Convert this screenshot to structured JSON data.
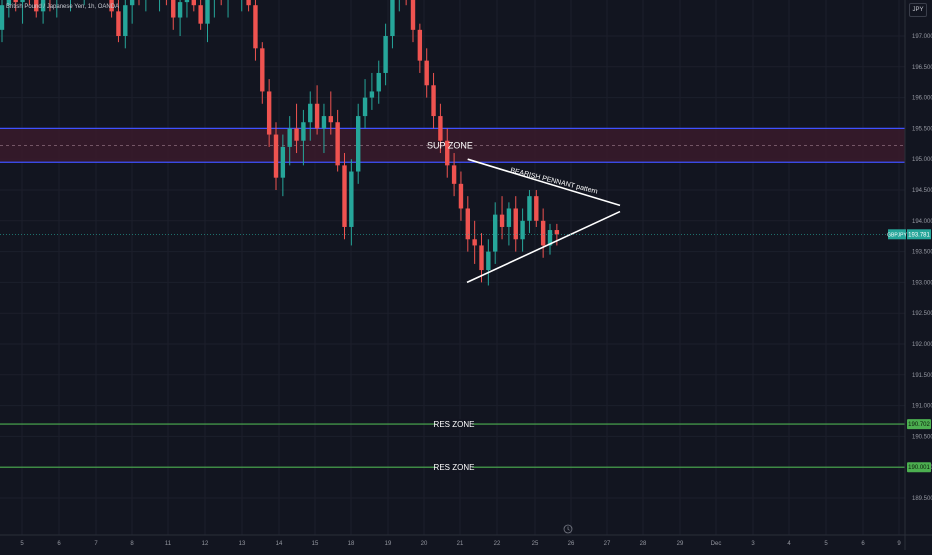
{
  "header": {
    "title": "British Pound / Japanese Yen, 1h, OANDA",
    "currency": "JPY"
  },
  "colors": {
    "background": "#121520",
    "grid": "#1c1f2b",
    "up": "#26a69a",
    "down": "#ef5350",
    "zone_line": "#3f51ff",
    "zone_fill": "#3a1a2c",
    "res_line": "#4caf50",
    "pennant": "#ffffff",
    "price_badge": "#26a69a"
  },
  "chart_data": {
    "type": "candlestick",
    "symbol": "GBPJPY",
    "timeframe": "1h",
    "y_axis": {
      "range": [
        189.0,
        198.1
      ],
      "ticks": [
        "197.000",
        "196.500",
        "196.000",
        "195.500",
        "195.000",
        "194.500",
        "194.000",
        "193.500",
        "193.000",
        "192.500",
        "192.000",
        "191.500",
        "191.000",
        "190.500",
        "190.000",
        "189.500"
      ]
    },
    "x_axis": {
      "ticks": [
        "5",
        "6",
        "7",
        "8",
        "11",
        "12",
        "13",
        "14",
        "15",
        "18",
        "19",
        "20",
        "21",
        "22",
        "25",
        "26",
        "27",
        "28",
        "29",
        "Dec",
        "3",
        "4",
        "5",
        "6",
        "9"
      ]
    },
    "candles": [
      [
        197.1,
        197.6,
        196.9,
        197.5
      ],
      [
        197.5,
        197.9,
        197.3,
        197.7
      ],
      [
        197.7,
        198.0,
        197.4,
        197.55
      ],
      [
        197.55,
        197.9,
        197.2,
        197.8
      ],
      [
        197.8,
        198.0,
        197.5,
        197.65
      ],
      [
        197.65,
        197.9,
        197.3,
        197.4
      ],
      [
        197.4,
        197.8,
        197.2,
        197.75
      ],
      [
        197.75,
        198.0,
        197.4,
        197.6
      ],
      [
        197.6,
        198.0,
        197.3,
        197.9
      ],
      [
        197.9,
        198.05,
        197.6,
        197.7
      ],
      [
        197.7,
        198.0,
        197.4,
        197.85
      ],
      [
        197.85,
        198.05,
        197.6,
        197.75
      ],
      [
        197.75,
        198.0,
        197.5,
        197.95
      ],
      [
        197.95,
        198.1,
        197.7,
        197.8
      ],
      [
        197.8,
        198.1,
        197.6,
        198.0
      ],
      [
        198.0,
        198.1,
        197.7,
        197.85
      ],
      [
        197.85,
        198.1,
        197.3,
        197.4
      ],
      [
        197.4,
        197.8,
        196.9,
        197.0
      ],
      [
        197.0,
        197.6,
        196.8,
        197.5
      ],
      [
        197.5,
        198.0,
        197.2,
        197.8
      ],
      [
        197.8,
        198.1,
        197.5,
        197.7
      ],
      [
        197.7,
        198.1,
        197.4,
        197.95
      ],
      [
        197.95,
        198.1,
        197.6,
        197.75
      ],
      [
        197.75,
        198.05,
        197.4,
        197.9
      ],
      [
        197.9,
        198.1,
        197.5,
        197.6
      ],
      [
        197.6,
        197.9,
        197.1,
        197.3
      ],
      [
        197.3,
        197.7,
        197.0,
        197.55
      ],
      [
        197.55,
        198.0,
        197.3,
        197.8
      ],
      [
        197.8,
        198.05,
        197.4,
        197.5
      ],
      [
        197.5,
        197.9,
        197.1,
        197.2
      ],
      [
        197.2,
        197.7,
        196.9,
        197.6
      ],
      [
        197.6,
        198.0,
        197.3,
        197.85
      ],
      [
        197.85,
        198.1,
        197.5,
        197.7
      ],
      [
        197.7,
        198.05,
        197.3,
        197.9
      ],
      [
        197.9,
        198.1,
        197.6,
        197.75
      ],
      [
        197.75,
        198.1,
        197.4,
        198.0
      ],
      [
        198.0,
        198.1,
        197.4,
        197.5
      ],
      [
        197.5,
        197.6,
        196.6,
        196.8
      ],
      [
        196.8,
        196.9,
        195.9,
        196.1
      ],
      [
        196.1,
        196.3,
        195.2,
        195.4
      ],
      [
        195.4,
        195.6,
        194.5,
        194.7
      ],
      [
        194.7,
        195.4,
        194.4,
        195.2
      ],
      [
        195.2,
        195.7,
        194.9,
        195.5
      ],
      [
        195.5,
        195.9,
        195.1,
        195.3
      ],
      [
        195.3,
        195.8,
        194.9,
        195.6
      ],
      [
        195.6,
        196.1,
        195.3,
        195.9
      ],
      [
        195.9,
        196.2,
        195.4,
        195.5
      ],
      [
        195.5,
        195.9,
        195.1,
        195.7
      ],
      [
        195.7,
        196.1,
        195.4,
        195.6
      ],
      [
        195.6,
        195.8,
        194.8,
        194.9
      ],
      [
        194.9,
        195.1,
        193.7,
        193.9
      ],
      [
        193.9,
        195.0,
        193.6,
        194.8
      ],
      [
        194.8,
        195.9,
        194.6,
        195.7
      ],
      [
        195.7,
        196.3,
        195.5,
        196.0
      ],
      [
        196.0,
        196.4,
        195.8,
        196.1
      ],
      [
        196.1,
        196.6,
        195.9,
        196.4
      ],
      [
        196.4,
        197.2,
        196.2,
        197.0
      ],
      [
        197.0,
        197.8,
        196.8,
        197.6
      ],
      [
        197.6,
        198.2,
        197.4,
        198.0
      ],
      [
        198.0,
        198.1,
        197.5,
        197.7
      ],
      [
        197.7,
        197.8,
        196.9,
        197.1
      ],
      [
        197.1,
        197.2,
        196.4,
        196.6
      ],
      [
        196.6,
        196.8,
        196.0,
        196.2
      ],
      [
        196.2,
        196.4,
        195.5,
        195.7
      ],
      [
        195.7,
        195.9,
        195.1,
        195.3
      ],
      [
        195.3,
        195.5,
        194.7,
        194.9
      ],
      [
        194.9,
        195.1,
        194.4,
        194.6
      ],
      [
        194.6,
        194.8,
        194.0,
        194.2
      ],
      [
        194.2,
        194.4,
        193.5,
        193.7
      ],
      [
        193.7,
        194.0,
        193.3,
        193.6
      ],
      [
        193.6,
        193.8,
        193.0,
        193.2
      ],
      [
        193.2,
        193.7,
        192.95,
        193.5
      ],
      [
        193.5,
        194.3,
        193.3,
        194.1
      ],
      [
        194.1,
        194.4,
        193.7,
        193.9
      ],
      [
        193.9,
        194.3,
        193.6,
        194.2
      ],
      [
        194.2,
        194.4,
        193.5,
        193.7
      ],
      [
        193.7,
        194.2,
        193.5,
        194.0
      ],
      [
        194.0,
        194.5,
        193.8,
        194.4
      ],
      [
        194.4,
        194.5,
        193.9,
        194.0
      ],
      [
        194.0,
        194.2,
        193.4,
        193.6
      ],
      [
        193.6,
        193.95,
        193.45,
        193.85
      ],
      [
        193.85,
        193.95,
        193.6,
        193.78
      ]
    ],
    "sup_zone": {
      "label": "SUP ZONE",
      "top": 195.5,
      "bottom": 194.95,
      "mid": 195.22
    },
    "res_zones": [
      {
        "label": "RES ZONE",
        "value": 190.7,
        "badge": "190.702"
      },
      {
        "label": "RES ZONE",
        "value": 190.0,
        "badge": "190.001"
      }
    ],
    "pennant": {
      "label": "BEARISH PENNANT pattern",
      "upper": {
        "from": [
          62,
          195.0
        ],
        "to": [
          82,
          194.25
        ]
      },
      "lower": {
        "from": [
          62,
          193.0
        ],
        "to": [
          82,
          194.15
        ]
      }
    },
    "current_price": {
      "symbol": "GBPJPY",
      "value": "193.781"
    }
  }
}
